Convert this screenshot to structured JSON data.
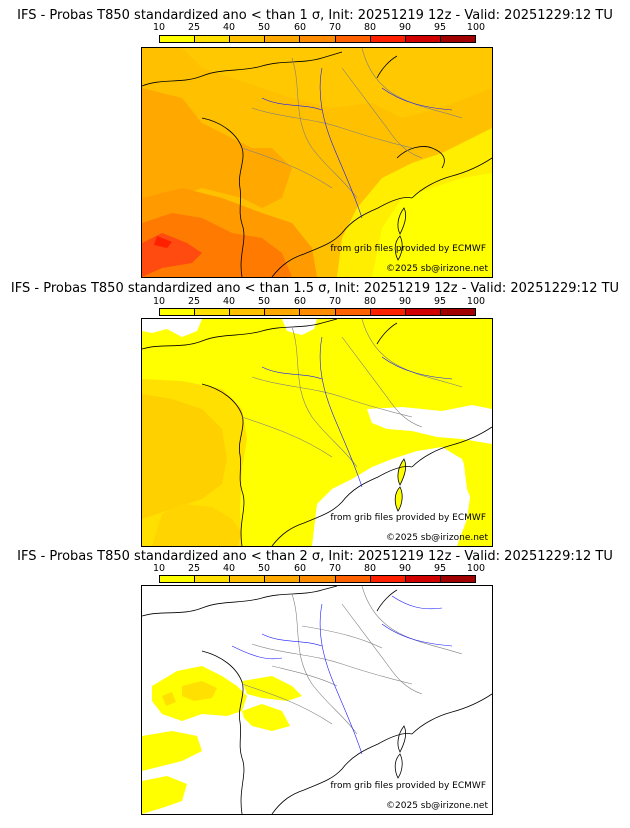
{
  "scale": {
    "labels": [
      "10",
      "25",
      "40",
      "50",
      "60",
      "70",
      "80",
      "90",
      "95",
      "100"
    ],
    "colors": [
      "#ffff00",
      "#ffe000",
      "#ffc000",
      "#ffa800",
      "#ff8c00",
      "#ff6000",
      "#ff2000",
      "#d00000",
      "#a00000",
      "#600000"
    ]
  },
  "panels": [
    {
      "title": "IFS - Probas T850  standardized ano < than 1 σ, Init: 20251219 12z - Valid: 20251229:12 TU",
      "source": "from grib files provided by ECMWF",
      "copyright": "©2025 sb@irizone.net"
    },
    {
      "title": "IFS - Probas T850  standardized ano < than 1.5 σ, Init: 20251219 12z - Valid: 20251229:12 TU",
      "source": "from grib files provided by ECMWF",
      "copyright": "©2025 sb@irizone.net"
    },
    {
      "title": "IFS - Probas T850  standardized ano < than 2 σ, Init: 20251219 12z - Valid: 20251229:12 TU",
      "source": "from grib files provided by ECMWF",
      "copyright": "©2025 sb@irizone.net"
    }
  ],
  "colors": {
    "c10": "#ffff00",
    "c25": "#ffe000",
    "c40": "#ffc000",
    "c50": "#ffa800",
    "c60": "#ff8c00",
    "c70": "#ff6000",
    "c80": "#ff2000",
    "coast": "#000000",
    "border": "#808080",
    "river": "#1a1aff"
  }
}
